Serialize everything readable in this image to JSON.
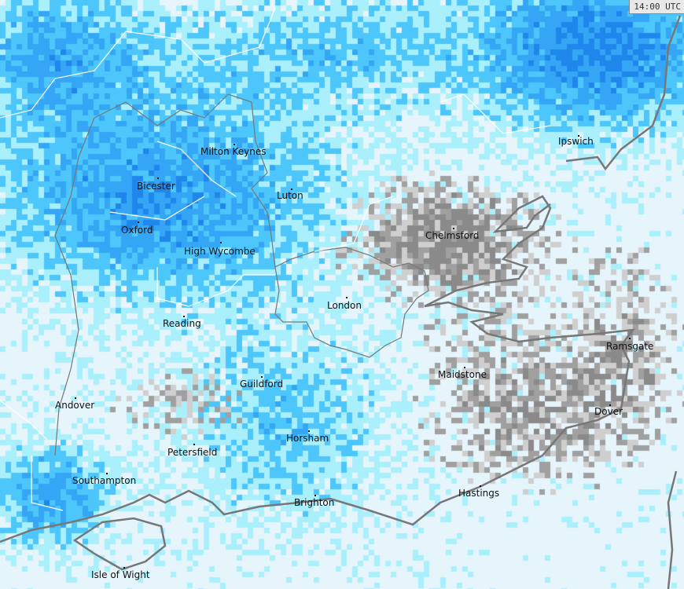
{
  "timestamp": "14:00 UTC",
  "map_layer": "precipitation-radar",
  "colors": {
    "background": "#e6f4fb",
    "light_cyan": "#aaf0fc",
    "sky_blue": "#4dc6fb",
    "blue": "#34a6f5",
    "deep_blue": "#1f86ec",
    "grey": "#a0a0a0",
    "dark_grey": "#8a8a8a",
    "light_grey": "#cfcfcf",
    "coastline": "#777777",
    "boundary": "#ffffff"
  },
  "cities": [
    {
      "name": "Milton Keynes"
    },
    {
      "name": "Bicester"
    },
    {
      "name": "Luton"
    },
    {
      "name": "Oxford"
    },
    {
      "name": "High Wycombe"
    },
    {
      "name": "Chelmsford"
    },
    {
      "name": "Ipswich"
    },
    {
      "name": "Reading"
    },
    {
      "name": "London"
    },
    {
      "name": "Guildford"
    },
    {
      "name": "Maidstone"
    },
    {
      "name": "Ramsgate"
    },
    {
      "name": "Dover"
    },
    {
      "name": "Andover"
    },
    {
      "name": "Petersfield"
    },
    {
      "name": "Horsham"
    },
    {
      "name": "Southampton"
    },
    {
      "name": "Brighton"
    },
    {
      "name": "Hastings"
    },
    {
      "name": "Isle of Wight"
    }
  ]
}
